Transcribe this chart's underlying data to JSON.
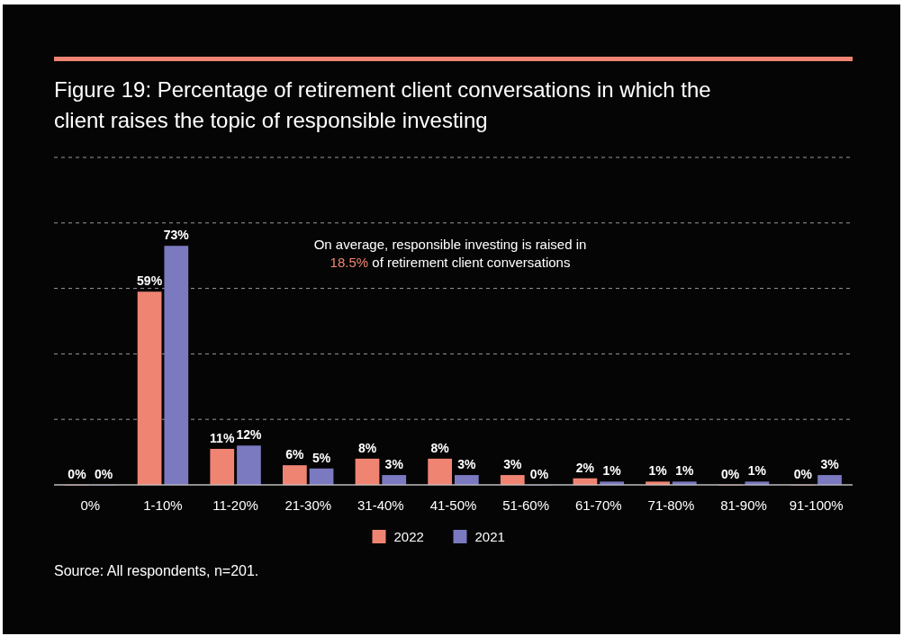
{
  "chart_data": {
    "type": "bar",
    "title": "Figure 19: Percentage of retirement client conversations in which the client raises the topic of responsible investing",
    "categories": [
      "0%",
      "1-10%",
      "11-20%",
      "21-30%",
      "31-40%",
      "41-50%",
      "51-60%",
      "61-70%",
      "71-80%",
      "81-90%",
      "91-100%"
    ],
    "series": [
      {
        "name": "2022",
        "color": "#f08473",
        "values": [
          0,
          59,
          11,
          6,
          8,
          8,
          3,
          2,
          1,
          0,
          0
        ],
        "value_labels": [
          "0%",
          "59%",
          "11%",
          "6%",
          "8%",
          "8%",
          "3%",
          "2%",
          "1%",
          "0%",
          "0%"
        ]
      },
      {
        "name": "2021",
        "color": "#7b79c0",
        "values": [
          0,
          73,
          12,
          5,
          3,
          3,
          0,
          1,
          1,
          1,
          3
        ],
        "value_labels": [
          "0%",
          "73%",
          "12%",
          "5%",
          "3%",
          "3%",
          "0%",
          "1%",
          "1%",
          "1%",
          "3%"
        ]
      }
    ],
    "ylim": [
      0,
      100
    ],
    "yticks": [
      {
        "value": 0,
        "label": null
      },
      {
        "value": 20,
        "label": null
      },
      {
        "value": 40,
        "label": null
      },
      {
        "value": 60,
        "label": null
      },
      {
        "value": 80,
        "label": null
      },
      {
        "value": 100,
        "label": null
      }
    ],
    "tick_labels": "x",
    "grid": "y",
    "legend": "bottom",
    "annotations": [
      "On average, responsible investing is raised in 18.5% of retirement client conversations",
      "Source: All respondents, n=201."
    ]
  }
}
